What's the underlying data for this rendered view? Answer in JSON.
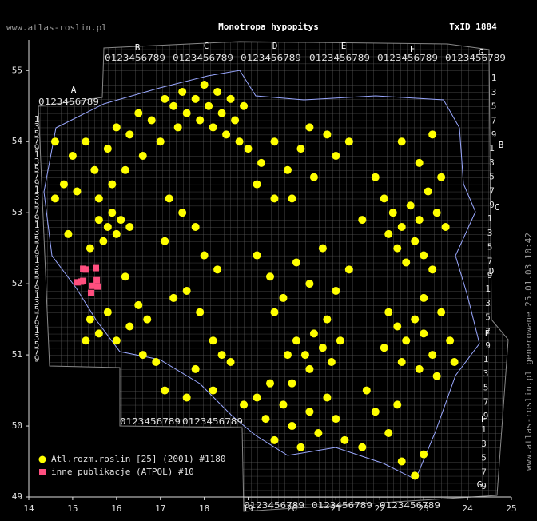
{
  "header": {
    "site": "www.atlas-roslin.pl",
    "title": "Monotropa hypopitys",
    "taxid": "TxID 1884"
  },
  "side_note": "www.atlas-roslin.pl generowane 25.01.03 10:42",
  "chart_data": {
    "type": "scatter",
    "xlim": [
      14,
      25
    ],
    "ylim": [
      49,
      55.43
    ],
    "xticks": [
      14,
      15,
      16,
      17,
      18,
      19,
      20,
      21,
      22,
      23,
      24,
      25
    ],
    "yticks": [
      49,
      50,
      51,
      52,
      53,
      54,
      55
    ],
    "grid_letters": [
      "A",
      "B",
      "C",
      "D",
      "E",
      "F",
      "G"
    ],
    "grid_digits": "0123456789",
    "row_digits": [
      "1",
      "3",
      "5",
      "7",
      "9"
    ],
    "series": [
      {
        "name": "Atl.rozm.roslin [25] (2001) #1180",
        "color": "#ffff00",
        "marker": "circle",
        "x": [
          17.1,
          17.3,
          17.5,
          17.6,
          17.8,
          17.9,
          18.0,
          18.1,
          18.2,
          18.3,
          18.4,
          18.5,
          18.6,
          18.7,
          18.8,
          18.9,
          19.0,
          17.4,
          17.0,
          16.8,
          16.5,
          16.3,
          14.6,
          15.0,
          15.3,
          15.8,
          16.0,
          15.5,
          14.8,
          14.6,
          15.1,
          15.6,
          15.9,
          16.2,
          16.6,
          15.6,
          15.8,
          15.9,
          16.0,
          16.1,
          15.7,
          16.3,
          15.4,
          14.9,
          15.4,
          15.6,
          15.8,
          16.0,
          16.3,
          16.5,
          15.3,
          16.6,
          16.9,
          16.7,
          17.1,
          16.2,
          17.2,
          17.5,
          17.8,
          18.0,
          18.3,
          17.6,
          17.9,
          18.2,
          17.3,
          17.1,
          19.3,
          19.6,
          19.9,
          20.2,
          20.5,
          20.8,
          21.0,
          21.3,
          19.6,
          19.2,
          20.0,
          20.4,
          22.1,
          22.3,
          22.5,
          22.7,
          22.9,
          23.1,
          23.3,
          23.5,
          22.4,
          22.6,
          22.8,
          23.0,
          23.2,
          22.2,
          23.4,
          22.9,
          22.5,
          23.2,
          21.9,
          21.6,
          22.2,
          22.4,
          22.6,
          22.8,
          23.0,
          23.2,
          23.4,
          23.6,
          22.5,
          22.9,
          23.3,
          22.1,
          23.0,
          23.7,
          19.2,
          19.5,
          19.8,
          20.1,
          20.4,
          20.7,
          21.0,
          21.3,
          19.6,
          20.8,
          20.1,
          20.3,
          20.5,
          20.7,
          20.9,
          21.1,
          20.4,
          19.9,
          19.2,
          19.4,
          19.6,
          19.8,
          20.0,
          20.2,
          20.4,
          20.6,
          20.8,
          21.0,
          21.2,
          19.5,
          20.0,
          21.6,
          21.9,
          22.2,
          22.5,
          22.8,
          22.4,
          21.7,
          23.0,
          17.8,
          18.2,
          18.6,
          18.9,
          18.4,
          17.6
        ],
        "y": [
          54.6,
          54.5,
          54.7,
          54.4,
          54.6,
          54.3,
          54.8,
          54.5,
          54.2,
          54.7,
          54.4,
          54.1,
          54.6,
          54.3,
          54.0,
          54.5,
          53.9,
          54.2,
          54.0,
          54.3,
          54.4,
          54.1,
          54.0,
          53.8,
          54.0,
          53.9,
          54.2,
          53.6,
          53.4,
          53.2,
          53.3,
          53.2,
          53.4,
          53.6,
          53.8,
          52.9,
          52.8,
          53.0,
          52.7,
          52.9,
          52.6,
          52.8,
          52.5,
          52.7,
          51.5,
          51.3,
          51.6,
          51.2,
          51.4,
          51.7,
          51.2,
          51.0,
          50.9,
          51.5,
          50.5,
          52.1,
          53.2,
          53.0,
          52.8,
          52.4,
          52.2,
          51.9,
          51.6,
          51.2,
          51.8,
          52.6,
          53.7,
          54.0,
          53.6,
          53.9,
          53.5,
          54.1,
          53.8,
          54.0,
          53.2,
          53.4,
          53.2,
          54.2,
          53.2,
          53.0,
          52.8,
          53.1,
          52.9,
          53.3,
          53.0,
          52.8,
          52.5,
          52.3,
          52.6,
          52.4,
          52.2,
          52.7,
          53.5,
          53.7,
          54.0,
          54.1,
          53.5,
          52.9,
          51.6,
          51.4,
          51.2,
          51.5,
          51.3,
          51.0,
          51.6,
          51.2,
          50.9,
          50.8,
          50.7,
          51.1,
          51.8,
          50.9,
          52.4,
          52.1,
          51.8,
          52.3,
          52.0,
          52.5,
          51.9,
          52.2,
          51.6,
          51.5,
          51.2,
          51.0,
          51.3,
          51.1,
          50.9,
          51.2,
          50.8,
          51.0,
          50.4,
          50.1,
          49.8,
          50.3,
          50.0,
          49.7,
          50.2,
          49.9,
          50.4,
          50.1,
          49.8,
          50.6,
          50.6,
          49.7,
          50.2,
          49.9,
          49.5,
          49.3,
          50.3,
          50.5,
          49.6,
          50.8,
          50.5,
          50.9,
          50.3,
          51.0,
          50.4
        ]
      },
      {
        "name": "inne publikacje (ATPOL) #10",
        "color": "#ff4f7f",
        "marker": "square",
        "x": [
          15.24,
          15.53,
          15.11,
          15.24,
          15.44,
          15.57,
          15.42,
          15.19,
          15.55,
          15.3
        ],
        "y": [
          52.21,
          52.22,
          52.02,
          52.04,
          51.97,
          51.96,
          51.87,
          52.03,
          52.05,
          52.2
        ]
      }
    ]
  }
}
